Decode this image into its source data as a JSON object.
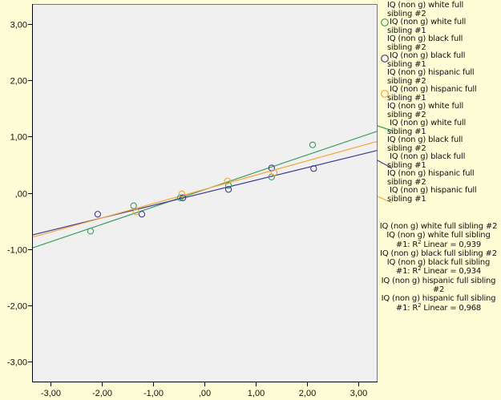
{
  "chart_data": {
    "type": "scatter",
    "title": "",
    "xlabel": "",
    "ylabel": "",
    "xlim": [
      -3.36,
      3.36
    ],
    "ylim": [
      -3.35,
      3.35
    ],
    "grid": false,
    "legend_position": "right",
    "x_ticks": [
      -3,
      -2,
      -1,
      0,
      1,
      2,
      3
    ],
    "x_tick_labels": [
      "-3,00",
      "-2,00",
      "-1,00",
      ",00",
      "1,00",
      "2,00",
      "3,00"
    ],
    "y_ticks": [
      3,
      2,
      1,
      0,
      -1,
      -2,
      -3
    ],
    "y_tick_labels": [
      "3,00",
      "2,00",
      "1,00",
      ",00",
      "-1,00",
      "-2,00",
      "-3,00"
    ],
    "series": [
      {
        "name": "IQ (non g) white full sibling #2 / IQ (non g) white full sibling #1",
        "color": "#3d9e5f",
        "points": [
          [
            -2.22,
            -0.68
          ],
          [
            -1.38,
            -0.23
          ],
          [
            -0.47,
            -0.09
          ],
          [
            0.47,
            0.13
          ],
          [
            1.31,
            0.28
          ],
          [
            2.11,
            0.85
          ]
        ],
        "fit": {
          "slope": 0.308,
          "intercept": 0.055,
          "r2_label": "R² Linear = 0,939"
        }
      },
      {
        "name": "IQ (non g) black full sibling #2 / IQ (non g) black full sibling #1",
        "color": "#3c3c8e",
        "points": [
          [
            -2.08,
            -0.38
          ],
          [
            -1.22,
            -0.38
          ],
          [
            -0.42,
            -0.09
          ],
          [
            0.47,
            0.06
          ],
          [
            1.31,
            0.44
          ],
          [
            2.13,
            0.43
          ]
        ],
        "fit": {
          "slope": 0.223,
          "intercept": 0.0,
          "r2_label": "R² Linear = 0,934"
        }
      },
      {
        "name": "IQ (non g) hispanic full sibling #2 / IQ (non g) hispanic full sibling #1",
        "color": "#f5a33b",
        "points": [
          [
            -1.33,
            -0.34
          ],
          [
            -0.44,
            -0.02
          ],
          [
            0.45,
            0.21
          ],
          [
            1.36,
            0.36
          ]
        ],
        "fit": {
          "slope": 0.253,
          "intercept": 0.06,
          "r2_label": "R² Linear = 0,968"
        }
      }
    ]
  },
  "legend": {
    "markers": [
      {
        "line1": "IQ (non g) white full",
        "line2": "sibling #2",
        "line3": " IQ (non g) white full",
        "line4": "sibling #1"
      },
      {
        "line1": "IQ (non g) black full",
        "line2": "sibling #2",
        "line3": " IQ (non g) black full",
        "line4": "sibling #1"
      },
      {
        "line1": "IQ (non g) hispanic full",
        "line2": "sibling #2",
        "line3": " IQ (non g) hispanic full",
        "line4": "sibling #1"
      }
    ],
    "fit_lines": [
      {
        "line1": "IQ (non g) white full",
        "line2": "sibling #2",
        "line3": " IQ (non g) white full",
        "line4": "sibling #1"
      },
      {
        "line1": "IQ (non g) black full",
        "line2": "sibling #2",
        "line3": " IQ (non g) black full",
        "line4": "sibling #1"
      },
      {
        "line1": "IQ (non g) hispanic full",
        "line2": "sibling #2",
        "line3": " IQ (non g) hispanic full",
        "line4": "sibling #1"
      }
    ],
    "fit_annotations": [
      {
        "line1": "IQ (non g) white full sibling #2",
        "line2": "IQ (non g) white full sibling",
        "line3_prefix": "#1: R",
        "sup": "2",
        "line3_suffix": " Linear = 0,939"
      },
      {
        "line1": "IQ (non g) black full sibling #2",
        "line2": "IQ (non g) black full sibling",
        "line3_prefix": "#1: R",
        "sup": "2",
        "line3_suffix": " Linear = 0,934"
      },
      {
        "line1": "IQ (non g) hispanic full sibling",
        "line1b": "#2",
        "line2": "IQ (non g) hispanic full sibling",
        "line3_prefix": "#1: R",
        "sup": "2",
        "line3_suffix": " Linear = 0,968"
      }
    ]
  },
  "colors": {
    "background": "#fefdd5",
    "plot_background": "#f0f0f0",
    "axis": "#000000",
    "white_series": "#3d9e5f",
    "black_series": "#3c3c8e",
    "hispanic_series": "#f5a33b"
  }
}
